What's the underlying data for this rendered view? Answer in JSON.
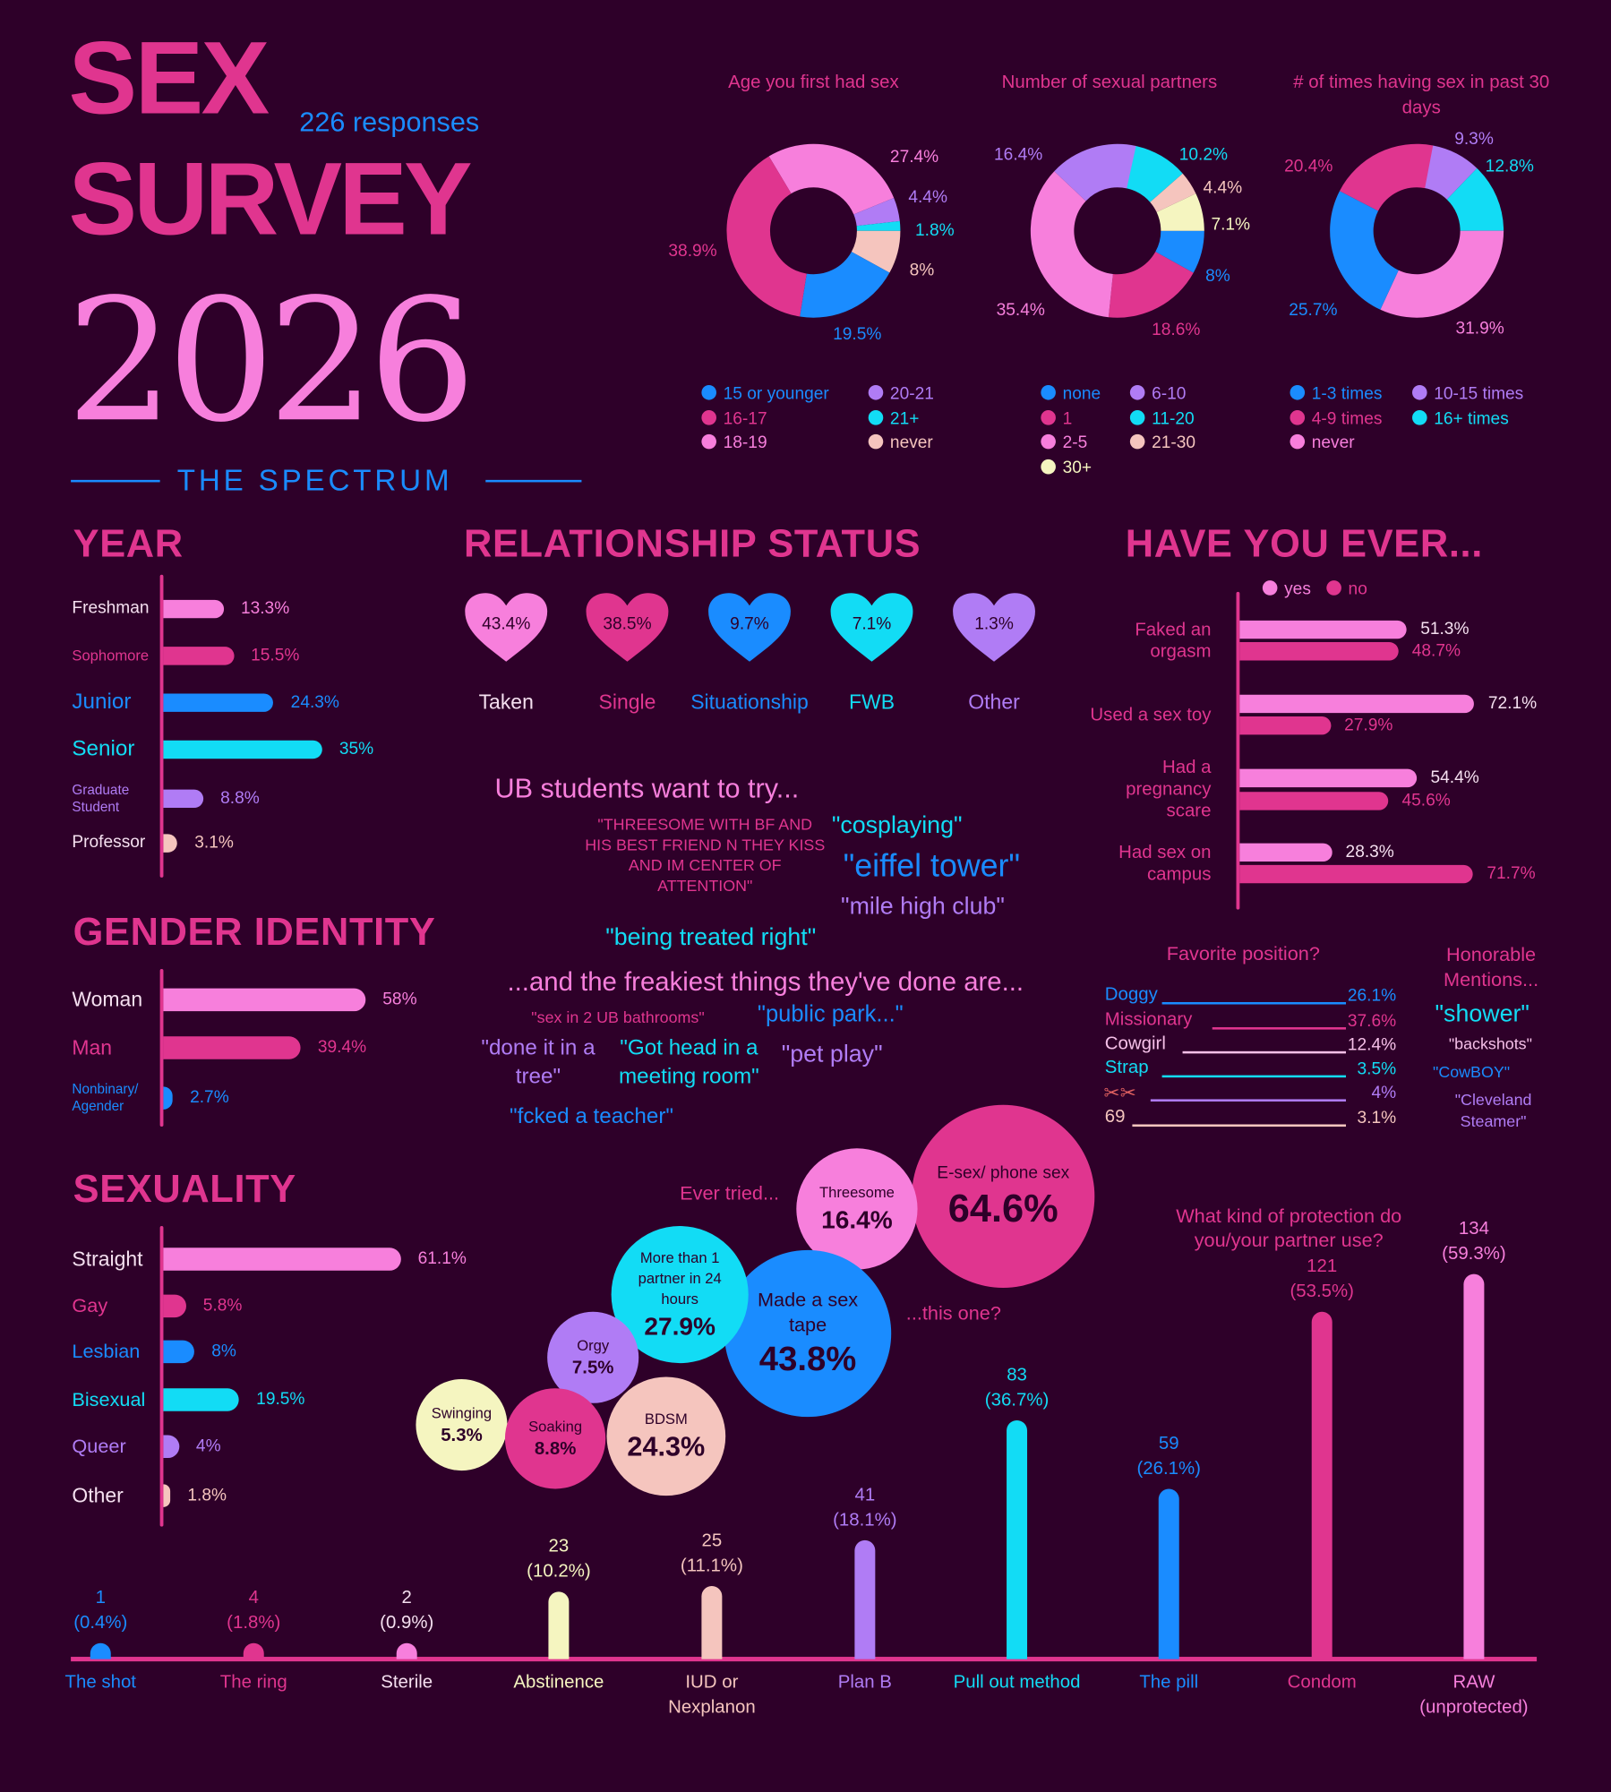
{
  "header": {
    "title_line1": "SEX",
    "title_line2": "SURVEY",
    "year": "2026",
    "responses": "226 responses",
    "subtitle": "THE SPECTRUM"
  },
  "colors": {
    "background": "#2e0029",
    "pink": "#f77fdc",
    "magenta": "#e0358f",
    "blue": "#1a8cff",
    "cyan": "#12dcf5",
    "lavender": "#b07cf5",
    "peach": "#f5c5be",
    "cream": "#f5f5c0"
  },
  "chart_data": [
    {
      "type": "pie",
      "title": "Age you first had sex",
      "slices": [
        {
          "label": "15 or younger",
          "value": "19.5%",
          "color": "#1a8cff"
        },
        {
          "label": "16-17",
          "value": "38.9%",
          "color": "#e0358f"
        },
        {
          "label": "18-19",
          "value": "27.4%",
          "color": "#f77fdc"
        },
        {
          "label": "20-21",
          "value": "4.4%",
          "color": "#b07cf5"
        },
        {
          "label": "21+",
          "value": "1.8%",
          "color": "#12dcf5"
        },
        {
          "label": "never",
          "value": "8%",
          "color": "#f5c5be"
        }
      ]
    },
    {
      "type": "pie",
      "title": "Number of sexual partners",
      "slices": [
        {
          "label": "none",
          "value": "8%",
          "color": "#1a8cff"
        },
        {
          "label": "1",
          "value": "18.6%",
          "color": "#e0358f"
        },
        {
          "label": "2-5",
          "value": "35.4%",
          "color": "#f77fdc"
        },
        {
          "label": "30+",
          "value": "7.1%",
          "color": "#f5f5c0"
        },
        {
          "label": "6-10",
          "value": "16.4%",
          "color": "#b07cf5"
        },
        {
          "label": "11-20",
          "value": "10.2%",
          "color": "#12dcf5"
        },
        {
          "label": "21-30",
          "value": "4.4%",
          "color": "#f5c5be"
        }
      ]
    },
    {
      "type": "pie",
      "title": "# of times having sex in past 30 days",
      "slices": [
        {
          "label": "1-3 times",
          "value": "25.7%",
          "color": "#1a8cff"
        },
        {
          "label": "4-9 times",
          "value": "20.4%",
          "color": "#e0358f"
        },
        {
          "label": "never",
          "value": "31.9%",
          "color": "#f77fdc"
        },
        {
          "label": "10-15 times",
          "value": "9.3%",
          "color": "#b07cf5"
        },
        {
          "label": "16+ times",
          "value": "12.8%",
          "color": "#12dcf5"
        }
      ]
    },
    {
      "type": "bar",
      "title": "YEAR",
      "rows": [
        {
          "label": "Freshman",
          "value": "13.3%",
          "color": "#f77fdc"
        },
        {
          "label": "Sophomore",
          "value": "15.5%",
          "color": "#e0358f"
        },
        {
          "label": "Junior",
          "value": "24.3%",
          "color": "#1a8cff"
        },
        {
          "label": "Senior",
          "value": "35%",
          "color": "#12dcf5"
        },
        {
          "label": "Graduate Student",
          "value": "8.8%",
          "color": "#b07cf5"
        },
        {
          "label": "Professor",
          "value": "3.1%",
          "color": "#f5c5be"
        }
      ]
    },
    {
      "type": "bar",
      "title": "GENDER IDENTITY",
      "rows": [
        {
          "label": "Woman",
          "value": "58%",
          "color": "#f77fdc"
        },
        {
          "label": "Man",
          "value": "39.4%",
          "color": "#e0358f"
        },
        {
          "label": "Nonbinary/ Agender",
          "value": "2.7%",
          "color": "#1a8cff"
        }
      ]
    },
    {
      "type": "bar",
      "title": "SEXUALITY",
      "rows": [
        {
          "label": "Straight",
          "value": "61.1%",
          "color": "#f77fdc"
        },
        {
          "label": "Gay",
          "value": "5.8%",
          "color": "#e0358f"
        },
        {
          "label": "Lesbian",
          "value": "8%",
          "color": "#1a8cff"
        },
        {
          "label": "Bisexual",
          "value": "19.5%",
          "color": "#12dcf5"
        },
        {
          "label": "Queer",
          "value": "4%",
          "color": "#b07cf5"
        },
        {
          "label": "Other",
          "value": "1.8%",
          "color": "#f5c5be"
        }
      ]
    },
    {
      "type": "bar",
      "title": "RELATIONSHIP STATUS",
      "rows": [
        {
          "label": "Taken",
          "value": "43.4%",
          "color": "#f77fdc"
        },
        {
          "label": "Single",
          "value": "38.5%",
          "color": "#e0358f"
        },
        {
          "label": "Situationship",
          "value": "9.7%",
          "color": "#1a8cff"
        },
        {
          "label": "FWB",
          "value": "7.1%",
          "color": "#12dcf5"
        },
        {
          "label": "Other",
          "value": "1.3%",
          "color": "#b07cf5"
        }
      ]
    },
    {
      "type": "bar",
      "title": "HAVE YOU EVER...",
      "legend": [
        "yes",
        "no"
      ],
      "rows": [
        {
          "label": "Faked an orgasm",
          "yes": "51.3%",
          "no": "48.7%"
        },
        {
          "label": "Used a sex toy",
          "yes": "72.1%",
          "no": "27.9%"
        },
        {
          "label": "Had a pregnancy scare",
          "yes": "54.4%",
          "no": "45.6%"
        },
        {
          "label": "Had sex on campus",
          "yes": "28.3%",
          "no": "71.7%"
        }
      ]
    },
    {
      "type": "table",
      "title": "Favorite position?",
      "rows": [
        {
          "label": "Doggy",
          "value": "26.1%",
          "color": "#1a8cff"
        },
        {
          "label": "Missionary",
          "value": "37.6%",
          "color": "#e0358f"
        },
        {
          "label": "Cowgirl",
          "value": "12.4%",
          "color": "#f5c0e8"
        },
        {
          "label": "Strap",
          "value": "3.5%",
          "color": "#12dcf5"
        },
        {
          "label": "",
          "icon": "scissors-icon",
          "value": "4%",
          "color": "#b07cf5"
        },
        {
          "label": "69",
          "value": "3.1%",
          "color": "#f5c5be"
        }
      ]
    },
    {
      "type": "scatter",
      "title": "Ever tried...",
      "subtitle": "...this one?",
      "bubbles": [
        {
          "label": "E-sex/ phone sex",
          "value": "64.6%",
          "color": "#e0358f"
        },
        {
          "label": "Threesome",
          "value": "16.4%",
          "color": "#f77fdc"
        },
        {
          "label": "Made a sex tape",
          "value": "43.8%",
          "color": "#1a8cff"
        },
        {
          "label": "More than 1 partner in 24 hours",
          "value": "27.9%",
          "color": "#12dcf5"
        },
        {
          "label": "Orgy",
          "value": "7.5%",
          "color": "#b07cf5"
        },
        {
          "label": "Swinging",
          "value": "5.3%",
          "color": "#f5f5c0"
        },
        {
          "label": "Soaking",
          "value": "8.8%",
          "color": "#e0358f"
        },
        {
          "label": "BDSM",
          "value": "24.3%",
          "color": "#f5c5be"
        }
      ]
    },
    {
      "type": "bar",
      "title": "What kind of protection do you/your partner use?",
      "categories": [
        {
          "label": "The shot",
          "count": "1",
          "pct": "(0.4%)",
          "color": "#1a8cff"
        },
        {
          "label": "The ring",
          "count": "4",
          "pct": "(1.8%)",
          "color": "#e0358f"
        },
        {
          "label": "Sterile",
          "count": "2",
          "pct": "(0.9%)",
          "color": "#f77fdc"
        },
        {
          "label": "Abstinence",
          "count": "23",
          "pct": "(10.2%)",
          "color": "#f5f5c0"
        },
        {
          "label": "IUD or Nexplanon",
          "count": "25",
          "pct": "(11.1%)",
          "color": "#f5c5be"
        },
        {
          "label": "Plan B",
          "count": "41",
          "pct": "(18.1%)",
          "color": "#b07cf5"
        },
        {
          "label": "Pull out method",
          "count": "83",
          "pct": "(36.7%)",
          "color": "#12dcf5"
        },
        {
          "label": "The pill",
          "count": "59",
          "pct": "(26.1%)",
          "color": "#1a8cff"
        },
        {
          "label": "Condom",
          "count": "121",
          "pct": "(53.5%)",
          "color": "#e0358f"
        },
        {
          "label": "RAW (unprotected)",
          "count": "134",
          "pct": "(59.3%)",
          "color": "#f77fdc"
        }
      ]
    }
  ],
  "want_to_try": {
    "title": "UB students want to try...",
    "quotes": [
      "\"THREESOME WITH BF AND HIS BEST FRIEND N THEY KISS AND IM CENTER OF ATTENTION\"",
      "\"cosplaying\"",
      "\"eiffel tower\"",
      "\"mile high club\"",
      "\"being treated right\""
    ]
  },
  "freakiest": {
    "title": "...and the freakiest things they've done are...",
    "quotes": [
      "\"sex in 2 UB bathrooms\"",
      "\"public park...\"",
      "\"done it in a tree\"",
      "\"Got head in a meeting room\"",
      "\"pet play\"",
      "\"fcked a teacher\""
    ]
  },
  "honorable": {
    "title": "Honorable Mentions...",
    "items": [
      "\"shower\"",
      "\"backshots\"",
      "\"CowBOY\"",
      "\"Cleveland Steamer\""
    ]
  }
}
